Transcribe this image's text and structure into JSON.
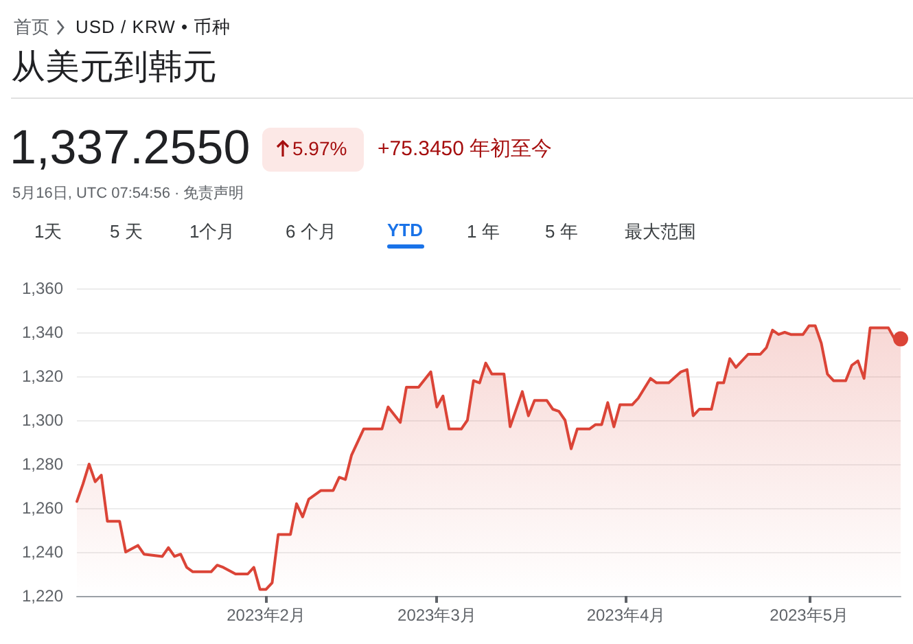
{
  "chart_data": {
    "type": "area",
    "title": "从美元到韩元",
    "annotations": [
      "首页",
      "USD / KRW • 币种",
      "1,337.2550",
      "5.97%",
      "+75.3450 年初至今",
      "5月16日, UTC 07:54:56 · 免责声明",
      "1天",
      "5 天",
      "1个月",
      "6 个月",
      "YTD",
      "1 年",
      "5 年",
      "最大范围"
    ],
    "x": [
      "2023-01-01",
      "2023-01-02",
      "2023-01-03",
      "2023-01-04",
      "2023-01-05",
      "2023-01-06",
      "2023-01-08",
      "2023-01-09",
      "2023-01-11",
      "2023-01-12",
      "2023-01-15",
      "2023-01-16",
      "2023-01-17",
      "2023-01-18",
      "2023-01-19",
      "2023-01-20",
      "2023-01-22",
      "2023-01-23",
      "2023-01-24",
      "2023-01-25",
      "2023-01-27",
      "2023-01-29",
      "2023-01-30",
      "2023-01-31",
      "2023-02-01",
      "2023-02-02",
      "2023-02-03",
      "2023-02-05",
      "2023-02-06",
      "2023-02-07",
      "2023-02-08",
      "2023-02-10",
      "2023-02-12",
      "2023-02-13",
      "2023-02-14",
      "2023-02-15",
      "2023-02-17",
      "2023-02-20",
      "2023-02-21",
      "2023-02-23",
      "2023-02-24",
      "2023-02-26",
      "2023-02-28",
      "2023-03-01",
      "2023-03-02",
      "2023-03-03",
      "2023-03-05",
      "2023-03-06",
      "2023-03-07",
      "2023-03-08",
      "2023-03-09",
      "2023-03-10",
      "2023-03-12",
      "2023-03-13",
      "2023-03-15",
      "2023-03-16",
      "2023-03-17",
      "2023-03-19",
      "2023-03-20",
      "2023-03-21",
      "2023-03-22",
      "2023-03-23",
      "2023-03-24",
      "2023-03-26",
      "2023-03-27",
      "2023-03-28",
      "2023-03-29",
      "2023-03-30",
      "2023-03-31",
      "2023-04-02",
      "2023-04-03",
      "2023-04-05",
      "2023-04-06",
      "2023-04-08",
      "2023-04-10",
      "2023-04-11",
      "2023-04-12",
      "2023-04-13",
      "2023-04-15",
      "2023-04-16",
      "2023-04-17",
      "2023-04-18",
      "2023-04-19",
      "2023-04-21",
      "2023-04-23",
      "2023-04-24",
      "2023-04-25",
      "2023-04-26",
      "2023-04-27",
      "2023-04-28",
      "2023-04-30",
      "2023-05-01",
      "2023-05-02",
      "2023-05-03",
      "2023-05-04",
      "2023-05-05",
      "2023-05-07",
      "2023-05-08",
      "2023-05-09",
      "2023-05-10",
      "2023-05-11",
      "2023-05-14",
      "2023-05-15",
      "2023-05-16"
    ],
    "series": [
      {
        "color": "#db4437",
        "values": [
          1263,
          1271,
          1280,
          1272,
          1275,
          1254,
          1254,
          1240,
          1243,
          1239,
          1238,
          1242,
          1238,
          1239,
          1233,
          1231,
          1231,
          1231,
          1234,
          1233,
          1230,
          1230,
          1233,
          1223,
          1223,
          1226,
          1248,
          1248,
          1262,
          1256,
          1264,
          1268,
          1268,
          1274,
          1273,
          1284,
          1296,
          1296,
          1306,
          1299,
          1315,
          1315,
          1322,
          1306,
          1311,
          1296,
          1296,
          1300,
          1318,
          1317,
          1326,
          1321,
          1321,
          1297,
          1313,
          1302,
          1309,
          1309,
          1305,
          1304,
          1300,
          1287,
          1296,
          1296,
          1298,
          1298,
          1308,
          1297,
          1307,
          1307,
          1310,
          1319,
          1317,
          1317,
          1322,
          1323,
          1302,
          1305,
          1305,
          1317,
          1317,
          1328,
          1324,
          1330,
          1330,
          1333,
          1341,
          1339,
          1340,
          1339,
          1339,
          1343,
          1343,
          1335,
          1321,
          1318,
          1318,
          1325,
          1327,
          1319,
          1342,
          1342,
          1337,
          1337
        ]
      }
    ],
    "xlim": [
      "2023-01-01",
      "2023-05-16"
    ],
    "xticks": [
      {
        "value": "2023-02-01",
        "label": "2023年2月"
      },
      {
        "value": "2023-03-01",
        "label": "2023年3月"
      },
      {
        "value": "2023-04-01",
        "label": "2023年4月"
      },
      {
        "value": "2023-05-01",
        "label": "2023年5月"
      }
    ],
    "ylim": [
      1220,
      1360
    ],
    "yticks": [
      {
        "value": 1220,
        "label": "1,220"
      },
      {
        "value": 1240,
        "label": "1,240"
      },
      {
        "value": 1260,
        "label": "1,260"
      },
      {
        "value": 1280,
        "label": "1,280"
      },
      {
        "value": 1300,
        "label": "1,300"
      },
      {
        "value": 1320,
        "label": "1,320"
      },
      {
        "value": 1340,
        "label": "1,340"
      },
      {
        "value": 1360,
        "label": "1,360"
      }
    ],
    "grid": "y"
  }
}
